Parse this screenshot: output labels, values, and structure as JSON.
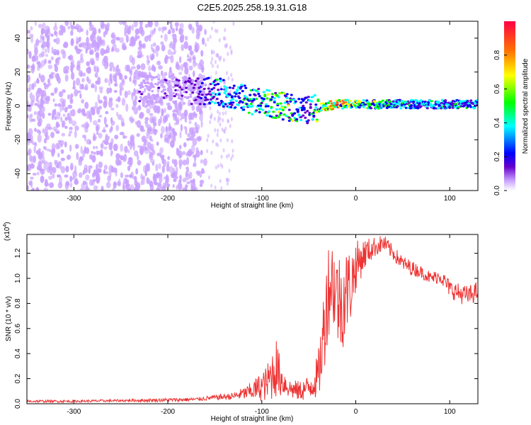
{
  "title": "C2E5.2025.258.19.31.G18",
  "colors": {
    "snr_line": "#ee3333",
    "spectrum_colormap": [
      "#ffffff",
      "#c8a0ff",
      "#6600cc",
      "#0000ff",
      "#00ffff",
      "#00ff00",
      "#ffff00",
      "#ff7700",
      "#ff0044"
    ]
  },
  "chart_data": [
    {
      "type": "heatmap",
      "name": "spectrogram",
      "xlabel": "Height of straight line (km)",
      "ylabel": "Frequency (Hz)",
      "xlim": [
        -350,
        130
      ],
      "ylim": [
        -50,
        50
      ],
      "xticks": [
        -300,
        -200,
        -100,
        0,
        100
      ],
      "xtick_labels": [
        "-300",
        "-200",
        "-100",
        "0",
        "100"
      ],
      "yticks": [
        -40,
        -20,
        0,
        20,
        40
      ],
      "ytick_labels": [
        "-40",
        "-20",
        "0",
        "20",
        "40"
      ],
      "colorbar": {
        "label": "Normalized spectral amplitude",
        "range": [
          0,
          1
        ],
        "ticks": [
          0.0,
          0.2,
          0.4,
          0.6,
          0.8
        ],
        "tick_labels": [
          "0.0",
          "0.2",
          "0.4",
          "0.6",
          "0.8"
        ]
      },
      "signal_track": {
        "x": [
          -230,
          -200,
          -170,
          -150,
          -130,
          -110,
          -90,
          -70,
          -55,
          -40,
          -20,
          0,
          50,
          130
        ],
        "freq": [
          10,
          10,
          8,
          9,
          6,
          3,
          1,
          -1,
          -3,
          -1,
          1,
          1,
          1,
          1
        ],
        "amplitude": [
          0.15,
          0.15,
          0.2,
          0.45,
          0.4,
          0.5,
          0.55,
          0.6,
          0.35,
          0.6,
          0.85,
          0.6,
          0.45,
          0.45
        ]
      },
      "noise_region_x": [
        -350,
        -160
      ]
    },
    {
      "type": "line",
      "name": "snr",
      "xlabel": "Height of straight line (km)",
      "ylabel": "SNR (10 * v/v)",
      "multiplier_label": "(x10^4)",
      "multiplier_base": "x10",
      "multiplier_exp": "4",
      "multiplier_open": "(",
      "multiplier_close": ")",
      "xlim": [
        -350,
        130
      ],
      "ylim": [
        0,
        1.35
      ],
      "xticks": [
        -300,
        -200,
        -100,
        0,
        100
      ],
      "xtick_labels": [
        "-300",
        "-200",
        "-100",
        "0",
        "100"
      ],
      "yticks": [
        0.0,
        0.2,
        0.4,
        0.6,
        0.8,
        1.0,
        1.2
      ],
      "ytick_labels": [
        "0.0",
        "0.2",
        "0.4",
        "0.6",
        "0.8",
        "1.0",
        "1.2"
      ],
      "series": [
        {
          "name": "SNR",
          "x": [
            -350,
            -300,
            -250,
            -200,
            -170,
            -150,
            -130,
            -115,
            -105,
            -95,
            -90,
            -85,
            -80,
            -75,
            -70,
            -60,
            -50,
            -40,
            -35,
            -30,
            -25,
            -20,
            -15,
            -10,
            -5,
            0,
            10,
            20,
            30,
            40,
            50,
            60,
            70,
            80,
            90,
            100,
            110,
            120,
            130
          ],
          "y": [
            0.02,
            0.02,
            0.025,
            0.03,
            0.035,
            0.05,
            0.06,
            0.09,
            0.12,
            0.16,
            0.22,
            0.3,
            0.2,
            0.16,
            0.12,
            0.1,
            0.13,
            0.22,
            0.5,
            0.9,
            1.0,
            0.85,
            0.8,
            0.9,
            0.95,
            1.1,
            1.2,
            1.25,
            1.28,
            1.2,
            1.12,
            1.08,
            1.05,
            1.0,
            1.02,
            0.92,
            0.88,
            0.86,
            0.9
          ],
          "noise": [
            0.01,
            0.01,
            0.01,
            0.015,
            0.015,
            0.02,
            0.03,
            0.06,
            0.1,
            0.14,
            0.2,
            0.25,
            0.15,
            0.1,
            0.08,
            0.08,
            0.1,
            0.18,
            0.35,
            0.4,
            0.35,
            0.4,
            0.4,
            0.35,
            0.3,
            0.2,
            0.12,
            0.08,
            0.07,
            0.06,
            0.06,
            0.06,
            0.05,
            0.05,
            0.06,
            0.07,
            0.08,
            0.08,
            0.08
          ]
        }
      ]
    }
  ]
}
